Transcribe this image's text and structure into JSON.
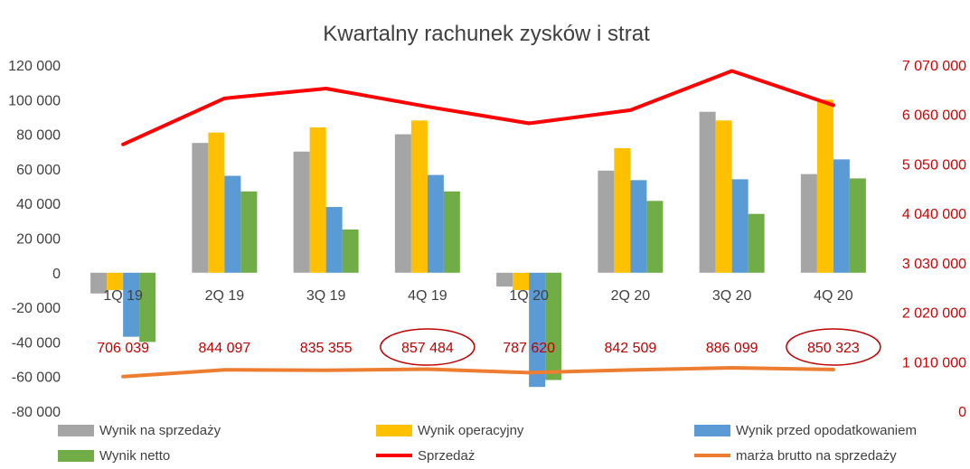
{
  "chart_data": {
    "type": "bar",
    "title": "Kwartalny rachunek zysków i strat",
    "categories": [
      "1Q 19",
      "2Q 19",
      "3Q 19",
      "4Q 19",
      "1Q 20",
      "2Q 20",
      "3Q 20",
      "4Q 20"
    ],
    "left_axis": {
      "ylim": [
        -80000,
        120000
      ],
      "ticks": [
        120000,
        100000,
        80000,
        60000,
        40000,
        20000,
        0,
        -20000,
        -40000,
        -60000,
        -80000
      ],
      "tick_labels": [
        "120 000",
        "100 000",
        "80 000",
        "60 000",
        "40 000",
        "20 000",
        "0",
        "-20 000",
        "-40 000",
        "-60 000",
        "-80 000"
      ]
    },
    "right_axis": {
      "ylim": [
        0,
        7070000
      ],
      "ticks": [
        7070000,
        6060000,
        5050000,
        4040000,
        3030000,
        2020000,
        1010000,
        0
      ],
      "tick_labels": [
        "7 070 000",
        "6 060 000",
        "5 050 000",
        "4 040 000",
        "3 030 000",
        "2 020 000",
        "1 010 000",
        "0"
      ]
    },
    "series": [
      {
        "name": "Wynik na sprzedaży",
        "type": "bar",
        "axis": "left",
        "color": "#a5a5a5",
        "values": [
          -12000,
          75000,
          70000,
          80000,
          -8000,
          59000,
          93000,
          57000
        ]
      },
      {
        "name": "Wynik operacyjny",
        "type": "bar",
        "axis": "left",
        "color": "#ffc000",
        "values": [
          -10000,
          81000,
          84000,
          88000,
          -10000,
          72000,
          88000,
          100000
        ]
      },
      {
        "name": "Wynik przed opodatkowaniem",
        "type": "bar",
        "axis": "left",
        "color": "#5b9bd5",
        "values": [
          -37000,
          56000,
          38000,
          56500,
          -66000,
          53500,
          54000,
          65500
        ]
      },
      {
        "name": "Wynik netto",
        "type": "bar",
        "axis": "left",
        "color": "#70ad47",
        "values": [
          -40000,
          47000,
          25000,
          47000,
          -62000,
          41500,
          34000,
          54500
        ]
      },
      {
        "name": "Sprzedaż",
        "type": "line",
        "axis": "right",
        "color": "#ff0000",
        "values": [
          5450000,
          6390000,
          6590000,
          6220000,
          5880000,
          6150000,
          6950000,
          6250000
        ]
      },
      {
        "name": "marża brutto na sprzedaży",
        "type": "line",
        "axis": "right",
        "color": "#ed7d31",
        "values": [
          706039,
          844097,
          835355,
          857484,
          787620,
          842509,
          886099,
          850323
        ]
      }
    ],
    "data_labels": [
      "706 039",
      "844 097",
      "835 355",
      "857 484",
      "787 620",
      "842 509",
      "886 099",
      "850 323"
    ],
    "circled_labels": [
      3,
      7
    ],
    "legend": {
      "position": "bottom"
    },
    "grid": false
  }
}
